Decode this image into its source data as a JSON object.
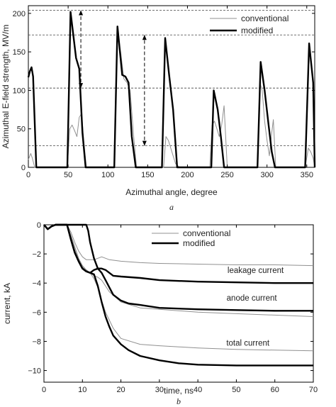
{
  "chart_data": [
    {
      "type": "line",
      "panel_label": "a",
      "xlabel": "Azimuthal angle, degree",
      "ylabel": "Azimuthal E-field strength, MV/m",
      "xlim": [
        0,
        360
      ],
      "ylim": [
        0,
        210
      ],
      "xticks": [
        "0",
        "50",
        "100",
        "150",
        "200",
        "250",
        "300",
        "350"
      ],
      "yticks": [
        "0",
        "50",
        "100",
        "150",
        "200"
      ],
      "hlines_dashed": [
        28,
        103,
        172,
        204
      ],
      "arrows": [
        {
          "x": 66,
          "y_from": 103,
          "y_to": 204
        },
        {
          "x": 146,
          "y_from": 28,
          "y_to": 172
        }
      ],
      "legend": {
        "position": "top-right",
        "entries": [
          "conventional",
          "modified"
        ]
      },
      "series": [
        {
          "name": "conventional",
          "color": "#909090",
          "x": [
            0,
            3,
            5,
            8,
            12,
            14,
            49,
            52,
            55,
            58,
            61,
            64,
            67,
            70,
            73,
            76,
            108,
            112,
            116,
            120,
            124,
            128,
            132,
            136,
            170,
            173,
            176,
            179,
            182,
            185,
            190,
            228,
            231,
            234,
            237,
            240,
            243,
            246,
            250,
            288,
            291,
            294,
            297,
            300,
            303,
            306,
            308,
            311,
            348,
            352,
            355,
            358,
            360
          ],
          "y": [
            10,
            18,
            12,
            0,
            0,
            0,
            0,
            50,
            55,
            48,
            40,
            65,
            70,
            30,
            0,
            0,
            0,
            170,
            150,
            115,
            110,
            100,
            45,
            0,
            0,
            40,
            35,
            25,
            15,
            5,
            0,
            0,
            55,
            60,
            50,
            40,
            55,
            80,
            0,
            0,
            110,
            100,
            60,
            35,
            15,
            45,
            62,
            0,
            0,
            25,
            20,
            12,
            0
          ]
        },
        {
          "name": "modified",
          "color": "#000000",
          "x": [
            0,
            2,
            4,
            6,
            10,
            13,
            49,
            53,
            60,
            64,
            68,
            72,
            75,
            108,
            112,
            118,
            122,
            126,
            130,
            135,
            168,
            172,
            177,
            182,
            187,
            192,
            230,
            233,
            238,
            242,
            246,
            288,
            292,
            297,
            302,
            306,
            310,
            348,
            353,
            358,
            360
          ],
          "y": [
            117,
            125,
            130,
            118,
            0,
            0,
            0,
            202,
            142,
            128,
            45,
            0,
            0,
            0,
            183,
            120,
            118,
            110,
            40,
            0,
            0,
            168,
            120,
            75,
            0,
            0,
            0,
            100,
            75,
            40,
            0,
            0,
            137,
            100,
            55,
            20,
            0,
            0,
            161,
            110,
            0
          ]
        }
      ]
    },
    {
      "type": "line",
      "panel_label": "b",
      "xlabel": "time, ns",
      "ylabel": "current, kA",
      "xlim": [
        0,
        70
      ],
      "ylim": [
        -10.8,
        0
      ],
      "xticks": [
        "0",
        "10",
        "20",
        "30",
        "40",
        "50",
        "60",
        "70"
      ],
      "yticks": [
        "0",
        "−2",
        "−4",
        "−6",
        "−8",
        "−10"
      ],
      "legend": {
        "position": "top-center",
        "entries": [
          "conventional",
          "modified"
        ]
      },
      "annotations": [
        {
          "text": "leakage current",
          "x": 55,
          "y": -3.3
        },
        {
          "text": "anode current",
          "x": 54,
          "y": -5.2
        },
        {
          "text": "total current",
          "x": 53,
          "y": -8.3
        }
      ],
      "series": [
        {
          "name": "conventional leakage",
          "color": "#909090",
          "x": [
            0,
            1,
            2,
            3,
            4,
            5,
            6,
            7,
            8,
            9,
            10,
            11,
            12,
            13,
            14,
            15,
            17,
            20,
            25,
            30,
            40,
            50,
            60,
            70
          ],
          "y": [
            0,
            -0.3,
            -0.1,
            0,
            0,
            0,
            0,
            -0.5,
            -1.2,
            -1.8,
            -2.2,
            -2.4,
            -2.4,
            -2.4,
            -2.3,
            -2.2,
            -2.4,
            -2.5,
            -2.6,
            -2.65,
            -2.7,
            -2.75,
            -2.75,
            -2.8
          ]
        },
        {
          "name": "conventional anode",
          "color": "#909090",
          "x": [
            0,
            1,
            2,
            3,
            4,
            5,
            6,
            7,
            8,
            9,
            10,
            11,
            12,
            13,
            14,
            15,
            17,
            20,
            25,
            30,
            40,
            50,
            60,
            70
          ],
          "y": [
            0,
            -0.3,
            -0.1,
            0,
            0,
            0,
            0,
            -0.7,
            -1.5,
            -2.3,
            -2.8,
            -3.1,
            -3.3,
            -3.5,
            -3.6,
            -3.8,
            -4.6,
            -5.3,
            -5.7,
            -5.8,
            -6.0,
            -6.1,
            -6.2,
            -6.3
          ]
        },
        {
          "name": "conventional total",
          "color": "#909090",
          "x": [
            0,
            1,
            2,
            3,
            4,
            5,
            6,
            7,
            8,
            9,
            10,
            11,
            12,
            13,
            14,
            15,
            16,
            18,
            20,
            25,
            30,
            40,
            50,
            60,
            70
          ],
          "y": [
            0,
            -0.3,
            -0.1,
            0,
            0,
            0,
            0,
            -0.8,
            -1.7,
            -2.4,
            -2.9,
            -3.1,
            -3.3,
            -3.7,
            -4.3,
            -5.2,
            -6.0,
            -7.1,
            -7.8,
            -8.2,
            -8.3,
            -8.45,
            -8.55,
            -8.6,
            -8.65
          ]
        },
        {
          "name": "modified leakage",
          "color": "#000000",
          "x": [
            0,
            1,
            2,
            3,
            4,
            5,
            6,
            7,
            8,
            9,
            10,
            11,
            11.5,
            12,
            13,
            14,
            15,
            16,
            17,
            18,
            20,
            25,
            30,
            40,
            50,
            60,
            70
          ],
          "y": [
            0,
            -0.3,
            -0.1,
            0,
            0,
            0,
            0,
            0,
            0,
            0,
            0,
            0,
            -0.4,
            -1.2,
            -2.3,
            -3.0,
            -3.0,
            -3.1,
            -3.3,
            -3.5,
            -3.55,
            -3.65,
            -3.8,
            -3.9,
            -3.95,
            -4.0,
            -4.0
          ]
        },
        {
          "name": "modified anode",
          "color": "#000000",
          "x": [
            0,
            1,
            2,
            3,
            4,
            5,
            6,
            7,
            8,
            9,
            10,
            11,
            12,
            13,
            14,
            15,
            16,
            17,
            18,
            20,
            22,
            25,
            30,
            40,
            50,
            60,
            70
          ],
          "y": [
            0,
            -0.3,
            -0.1,
            0,
            0,
            0,
            0,
            -1.0,
            -1.9,
            -2.5,
            -3.0,
            -3.2,
            -3.3,
            -3.1,
            -3.0,
            -3.3,
            -3.8,
            -4.3,
            -4.8,
            -5.2,
            -5.4,
            -5.5,
            -5.7,
            -5.8,
            -5.85,
            -5.9,
            -5.9
          ]
        },
        {
          "name": "modified total",
          "color": "#000000",
          "x": [
            0,
            1,
            2,
            3,
            4,
            5,
            6,
            7,
            8,
            9,
            10,
            11,
            12,
            13,
            14,
            15,
            16,
            17,
            18,
            20,
            22,
            25,
            30,
            35,
            40,
            50,
            60,
            70
          ],
          "y": [
            0,
            -0.3,
            -0.1,
            0,
            0,
            0,
            0,
            -1.0,
            -1.9,
            -2.5,
            -3.0,
            -3.2,
            -3.3,
            -3.4,
            -4.2,
            -5.3,
            -6.3,
            -7.0,
            -7.6,
            -8.2,
            -8.6,
            -9.0,
            -9.3,
            -9.5,
            -9.6,
            -9.65,
            -9.65,
            -9.65
          ]
        }
      ]
    }
  ]
}
